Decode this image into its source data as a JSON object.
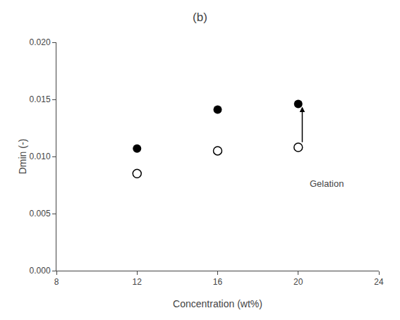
{
  "chart_data": {
    "type": "scatter",
    "title": "(b)",
    "x_label": "Concentration (wt%)",
    "y_label": "Dmin (-)",
    "x": [
      12,
      16,
      20
    ],
    "series": [
      {
        "color": "#000000",
        "marker": "circle",
        "values": [
          0.0107,
          0.0141,
          0.0146
        ]
      },
      {
        "color": "#000000",
        "marker": "circle-open",
        "values": [
          0.0085,
          0.0105,
          0.0108
        ]
      }
    ],
    "xlim": [
      8,
      24
    ],
    "xticks": [
      8,
      12,
      16,
      20,
      24
    ],
    "ylim": [
      0.0,
      0.02
    ],
    "yticks": [
      {
        "value": 0.0,
        "label": "0.000"
      },
      0.005,
      {
        "value": 0.01,
        "label": "0.010"
      },
      0.015,
      {
        "value": 0.02,
        "label": "0.020"
      }
    ],
    "grid": false,
    "annotations": [
      {
        "text": "Gelation",
        "x": 20.5,
        "y": 0.0082,
        "arrow_from": [
          20.2,
          0.01115
        ],
        "arrow_to": [
          20.2,
          0.01435
        ]
      }
    ]
  }
}
